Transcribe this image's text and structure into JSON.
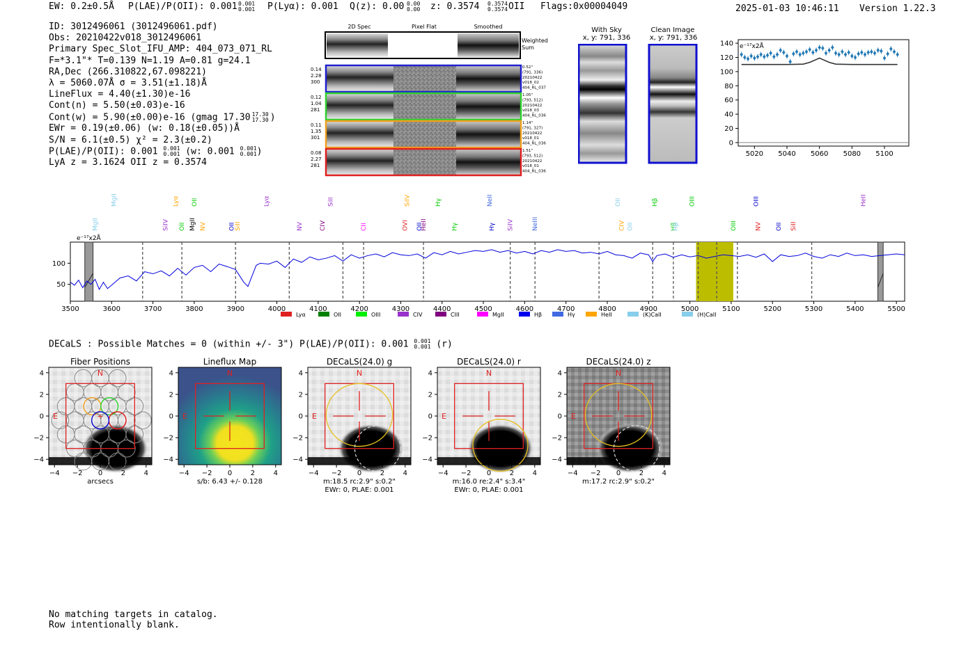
{
  "header": {
    "ew": "EW: 0.2±0.5Å",
    "plae": "P(LAE)/P(OII): 0.001",
    "plae_hi": "0.001",
    "plae_lo": "0.001",
    "plya": "P(Lyα): 0.001",
    "qz": "Q(z): 0.00",
    "qz_hi": "0.00",
    "qz_lo": "0.00",
    "z": "z: 0.3574",
    "z_hi": "0.3574",
    "z_lo": "0.3574",
    "z_label": "OII",
    "flags": "Flags:0x00004049",
    "datetime": "2025-01-03 10:46:11",
    "version": "Version 1.22.3"
  },
  "info": {
    "lines": [
      "ID: 3012496061 (3012496061.pdf)",
      "Obs: 20210422v018_3012496061",
      "Primary Spec_Slot_IFU_AMP: 404_073_071_RL",
      "F=*3.1\"*  T=0.139  N=1.19  A=0.81  g=24.1",
      "RA,Dec (266.310822,67.098221)",
      "λ = 5060.07Å   σ = 3.51(±1.18)Å",
      "LineFlux = 4.40(±1.30)e-16",
      "Cont(n) = 5.50(±0.03)e-16",
      "Cont(w) = 5.90(±0.00)e-16 (gmag 17.30",
      "EWr = 0.19(±0.06) (w: 0.18(±0.05))Å",
      "S/N = 6.1(±0.5)  χ² = 2.3(±0.2)",
      "P(LAE)/P(OII): 0.001",
      "LyA z = 3.1624  OII z = 0.3574"
    ],
    "gmag_hi": "17.30",
    "gmag_lo": "17.30",
    "plae2_hi": "0.001",
    "plae2_lo": "0.001",
    "plae2_w": "(w: 0.001",
    "plae2_w_hi": "0.001",
    "plae2_w_lo": "0.001"
  },
  "cutouts": {
    "col_labels": [
      "2D Spec",
      "Pixel Flat",
      "Smoothed"
    ],
    "weighted_sum": [
      "Weighted",
      "Sum"
    ],
    "rows": [
      {
        "stats": [
          "0.14",
          "2.28",
          "300"
        ],
        "meta": [
          "0.52\"",
          "(791, 336)",
          "20210422",
          "v018_02",
          "404_RL_037"
        ],
        "color": "#2020d0"
      },
      {
        "stats": [
          "0.12",
          "1.04",
          "281"
        ],
        "meta": [
          "1.05\"",
          "(793, 512)",
          "20210422",
          "v018_03",
          "404_RL_036"
        ],
        "color": "#30d030"
      },
      {
        "stats": [
          "0.11",
          "1.35",
          "301"
        ],
        "meta": [
          "1.14\"",
          "(791, 327)",
          "20210422",
          "v018_01",
          "404_RL_036"
        ],
        "color": "#f0a020"
      },
      {
        "stats": [
          "0.08",
          "2.27",
          "281"
        ],
        "meta": [
          "1.51\"",
          "(793, 512)",
          "20210422",
          "v018_01",
          "404_RL_036"
        ],
        "color": "#e02020"
      }
    ]
  },
  "sky": {
    "with_sky_title": "With Sky",
    "with_sky_xy": "x, y: 791, 336",
    "clean_title": "Clean Image",
    "clean_xy": "x, y: 791, 336"
  },
  "zoom_chart": {
    "type": "scatter",
    "ylabel_units": "e⁻¹⁷x2Å",
    "xticks": [
      "5020",
      "5040",
      "5060",
      "5080",
      "5100"
    ],
    "yticks": [
      "0",
      "20",
      "40",
      "60",
      "80",
      "100",
      "120",
      "140"
    ],
    "xlim": [
      5010,
      5115
    ],
    "ylim": [
      -5,
      145
    ],
    "points_x": [
      5012,
      5014,
      5016,
      5018,
      5020,
      5022,
      5024,
      5026,
      5028,
      5030,
      5032,
      5034,
      5036,
      5038,
      5040,
      5042,
      5044,
      5046,
      5048,
      5050,
      5052,
      5054,
      5056,
      5058,
      5060,
      5062,
      5064,
      5066,
      5068,
      5070,
      5072,
      5074,
      5076,
      5078,
      5080,
      5082,
      5084,
      5086,
      5088,
      5090,
      5092,
      5094,
      5096,
      5098,
      5100,
      5102,
      5104,
      5106,
      5108
    ],
    "points_y": [
      124,
      120,
      118,
      122,
      119,
      121,
      124,
      121,
      123,
      126,
      121,
      124,
      130,
      127,
      122,
      114,
      125,
      128,
      124,
      126,
      128,
      131,
      127,
      130,
      134,
      133,
      126,
      130,
      134,
      126,
      124,
      128,
      124,
      127,
      122,
      120,
      125,
      127,
      124,
      127,
      128,
      126,
      130,
      129,
      119,
      125,
      132,
      128,
      124
    ],
    "model_x": [
      5012,
      5040,
      5050,
      5054,
      5058,
      5060,
      5062,
      5066,
      5070,
      5080,
      5108
    ],
    "model_y": [
      110,
      110,
      110.5,
      113,
      117,
      119,
      117,
      113,
      110.5,
      110,
      110
    ]
  },
  "chart_data": {
    "type": "line",
    "ylabel_units": "e⁻¹⁷x2Å",
    "xlim": [
      3500,
      5520
    ],
    "ylim": [
      10,
      150
    ],
    "xticks": [
      "3500",
      "3600",
      "3700",
      "3800",
      "3900",
      "4000",
      "4100",
      "4200",
      "4300",
      "4400",
      "4500",
      "4600",
      "4700",
      "4800",
      "4900",
      "5000",
      "5100",
      "5200",
      "5300",
      "5400",
      "5500"
    ],
    "yticks": [
      "50",
      "100"
    ],
    "x": [
      3500,
      3510,
      3520,
      3530,
      3540,
      3550,
      3560,
      3570,
      3580,
      3590,
      3600,
      3620,
      3640,
      3660,
      3680,
      3700,
      3720,
      3740,
      3760,
      3780,
      3800,
      3820,
      3840,
      3860,
      3880,
      3900,
      3920,
      3930,
      3940,
      3950,
      3960,
      3980,
      4000,
      4020,
      4040,
      4060,
      4080,
      4100,
      4120,
      4140,
      4160,
      4180,
      4200,
      4220,
      4240,
      4260,
      4280,
      4300,
      4320,
      4340,
      4360,
      4380,
      4400,
      4420,
      4440,
      4460,
      4480,
      4500,
      4520,
      4540,
      4560,
      4580,
      4600,
      4620,
      4640,
      4660,
      4680,
      4700,
      4720,
      4740,
      4760,
      4780,
      4800,
      4820,
      4840,
      4860,
      4880,
      4900,
      4910,
      4920,
      4940,
      4960,
      4980,
      5000,
      5020,
      5040,
      5060,
      5080,
      5100,
      5120,
      5140,
      5160,
      5180,
      5200,
      5220,
      5240,
      5260,
      5280,
      5300,
      5320,
      5340,
      5360,
      5380,
      5400,
      5420,
      5440,
      5460,
      5480,
      5500,
      5520
    ],
    "y": [
      55,
      48,
      60,
      42,
      58,
      50,
      62,
      38,
      55,
      40,
      48,
      65,
      70,
      58,
      80,
      75,
      82,
      70,
      88,
      72,
      90,
      95,
      80,
      98,
      92,
      85,
      55,
      45,
      70,
      95,
      100,
      98,
      105,
      90,
      110,
      102,
      115,
      108,
      112,
      118,
      105,
      120,
      112,
      118,
      122,
      115,
      125,
      120,
      118,
      122,
      112,
      125,
      120,
      128,
      122,
      126,
      130,
      128,
      132,
      126,
      130,
      124,
      128,
      122,
      130,
      126,
      132,
      128,
      130,
      124,
      126,
      122,
      128,
      120,
      118,
      112,
      124,
      120,
      104,
      118,
      122,
      114,
      120,
      115,
      118,
      112,
      116,
      120,
      118,
      116,
      120,
      114,
      122,
      104,
      120,
      116,
      118,
      124,
      116,
      112,
      120,
      116,
      124,
      118,
      120,
      116,
      118,
      120,
      122,
      120
    ],
    "emission_lines": [
      {
        "name": "MgII",
        "x": 3560,
        "color": "#87ceeb"
      },
      {
        "name": "MgII",
        "x": 3605,
        "color": "#87ceeb"
      },
      {
        "name": "SiIV",
        "x": 3730,
        "color": "#9932cc"
      },
      {
        "name": "OII",
        "x": 3770,
        "color": "#00cc00"
      },
      {
        "name": "Lyα",
        "x": 3755,
        "color": "#ffa500"
      },
      {
        "name": "MgII",
        "x": 3795,
        "color": "#000000"
      },
      {
        "name": "NV",
        "x": 3820,
        "color": "#ffa500"
      },
      {
        "name": "OII",
        "x": 3800,
        "color": "#00cc00"
      },
      {
        "name": "OII",
        "x": 3890,
        "color": "#0000cc"
      },
      {
        "name": "SiII",
        "x": 3905,
        "color": "#ffa500"
      },
      {
        "name": "Lyα",
        "x": 3975,
        "color": "#9932cc"
      },
      {
        "name": "NV",
        "x": 4055,
        "color": "#9932cc"
      },
      {
        "name": "CIV",
        "x": 4110,
        "color": "#800080"
      },
      {
        "name": "SiII",
        "x": 4130,
        "color": "#9932cc"
      },
      {
        "name": "CII",
        "x": 4210,
        "color": "#ff00ff"
      },
      {
        "name": "OVI",
        "x": 4310,
        "color": "#e02020"
      },
      {
        "name": "SiIV",
        "x": 4315,
        "color": "#ffa500"
      },
      {
        "name": "OII",
        "x": 4345,
        "color": "#0000cc"
      },
      {
        "name": "HeII",
        "x": 4355,
        "color": "#800080"
      },
      {
        "name": "Hγ",
        "x": 4390,
        "color": "#00cc00"
      },
      {
        "name": "Hγ",
        "x": 4430,
        "color": "#00cc00"
      },
      {
        "name": "Hγ",
        "x": 4520,
        "color": "#0000cc"
      },
      {
        "name": "NeII",
        "x": 4515,
        "color": "#4169e1"
      },
      {
        "name": "SiIV",
        "x": 4565,
        "color": "#9932cc"
      },
      {
        "name": "NeIII",
        "x": 4625,
        "color": "#4169e1"
      },
      {
        "name": "OII",
        "x": 4825,
        "color": "#87ceeb"
      },
      {
        "name": "CIV",
        "x": 4835,
        "color": "#ffa500"
      },
      {
        "name": "OII",
        "x": 4855,
        "color": "#87ceeb"
      },
      {
        "name": "Hβ",
        "x": 4915,
        "color": "#00cc00"
      },
      {
        "name": "Hβ",
        "x": 4960,
        "color": "#00cc00"
      },
      {
        "name": "Hβ",
        "x": 4965,
        "color": "#87ceeb"
      },
      {
        "name": "OIII",
        "x": 5005,
        "color": "#00cc00"
      },
      {
        "name": "OIII",
        "x": 5105,
        "color": "#00cc00"
      },
      {
        "name": "NV",
        "x": 5165,
        "color": "#e02020"
      },
      {
        "name": "OIII",
        "x": 5160,
        "color": "#0000cc"
      },
      {
        "name": "OII",
        "x": 5215,
        "color": "#0000cc"
      },
      {
        "name": "SiII",
        "x": 5250,
        "color": "#e02020"
      },
      {
        "name": "HeII",
        "x": 5420,
        "color": "#9932cc"
      }
    ],
    "dashed_lines": [
      3675,
      3770,
      3900,
      4030,
      4160,
      4210,
      4355,
      4565,
      4625,
      4780,
      4910,
      4960,
      5020,
      5065,
      5115,
      5295
    ],
    "highlight_range": [
      5015,
      5105
    ],
    "gap_bands": [
      [
        3535,
        3555
      ],
      [
        5455,
        5468
      ]
    ],
    "legend": [
      {
        "label": "Lyα",
        "color": "#e02020"
      },
      {
        "label": "OII",
        "color": "#008000"
      },
      {
        "label": "OIII",
        "color": "#00ee00"
      },
      {
        "label": "CIV",
        "color": "#9932cc"
      },
      {
        "label": "CIII",
        "color": "#800080"
      },
      {
        "label": "MgII",
        "color": "#ff00ff"
      },
      {
        "label": "Hβ",
        "color": "#0000ee"
      },
      {
        "label": "Hγ",
        "color": "#4169e1"
      },
      {
        "label": "HeII",
        "color": "#ffa500"
      },
      {
        "label": "(K)CaII",
        "color": "#87ceeb"
      },
      {
        "label": "(H)CaII",
        "color": "#87ceeb"
      }
    ]
  },
  "decals": {
    "summary": "DECaLS : Possible Matches = 0 (within +/- 3\")  P(LAE)/P(OII): 0.001",
    "summary_hi": "0.001",
    "summary_lo": "0.001",
    "summary_band": "(r)",
    "ticks": [
      "−4",
      "−2",
      "0",
      "2",
      "4"
    ],
    "panels": [
      {
        "title": "Fiber Positions",
        "caption1": "arcsecs",
        "caption2": ""
      },
      {
        "title": "Lineflux Map",
        "caption1": "s/b: 6.43 +/- 0.128",
        "caption2": ""
      },
      {
        "title": "DECaLS(24.0) g",
        "caption1": "m:18.5 rc:2.9\"  s:0.2\"",
        "caption2": "EWr: 0, PLAE: 0.001"
      },
      {
        "title": "DECaLS(24.0) r",
        "caption1": "m:16.0  re:2.4\"  s:3.4\"",
        "caption2": "EWr: 0, PLAE: 0.001"
      },
      {
        "title": "DECaLS(24.0) z",
        "caption1": "m:17.2 rc:2.9\"  s:0.2\"",
        "caption2": ""
      }
    ],
    "compass_n": "N",
    "compass_e": "E"
  },
  "footer": [
    "No matching targets in catalog.",
    "Row intentionally blank."
  ]
}
